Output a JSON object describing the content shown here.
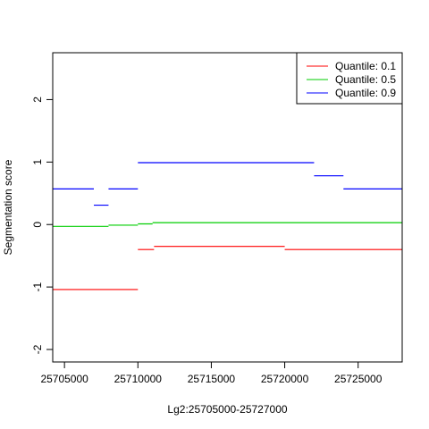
{
  "chart_data": {
    "type": "line",
    "title": "",
    "xlabel": "Lg2:25705000-25727000",
    "ylabel": "Segmentation score",
    "xlim": [
      25704200,
      25728000
    ],
    "ylim": [
      -2.2,
      2.75
    ],
    "xticks": [
      25705000,
      25710000,
      25715000,
      25720000,
      25725000
    ],
    "yticks": [
      -2,
      -1,
      0,
      1,
      2
    ],
    "grid": false,
    "legend_position": "top-right",
    "series": [
      {
        "name": "Quantile: 0.1",
        "color": "#ff0000",
        "segments": [
          {
            "x": [
              25704200,
              25710000
            ],
            "y": -1.04
          },
          {
            "x": [
              25710000,
              25711100
            ],
            "y": -0.4
          },
          {
            "x": [
              25711100,
              25720000
            ],
            "y": -0.35
          },
          {
            "x": [
              25720000,
              25728000
            ],
            "y": -0.4
          }
        ]
      },
      {
        "name": "Quantile: 0.5",
        "color": "#00cd00",
        "segments": [
          {
            "x": [
              25704200,
              25708000
            ],
            "y": -0.03
          },
          {
            "x": [
              25708000,
              25710000
            ],
            "y": -0.01
          },
          {
            "x": [
              25710000,
              25711000
            ],
            "y": 0.01
          },
          {
            "x": [
              25711000,
              25728000
            ],
            "y": 0.03
          }
        ]
      },
      {
        "name": "Quantile: 0.9",
        "color": "#0000ff",
        "segments": [
          {
            "x": [
              25704200,
              25707000
            ],
            "y": 0.57
          },
          {
            "x": [
              25707000,
              25708000
            ],
            "y": 0.31
          },
          {
            "x": [
              25708000,
              25710000
            ],
            "y": 0.57
          },
          {
            "x": [
              25710000,
              25722000
            ],
            "y": 0.99
          },
          {
            "x": [
              25722000,
              25724000
            ],
            "y": 0.78
          },
          {
            "x": [
              25724000,
              25728000
            ],
            "y": 0.57
          }
        ]
      }
    ]
  }
}
